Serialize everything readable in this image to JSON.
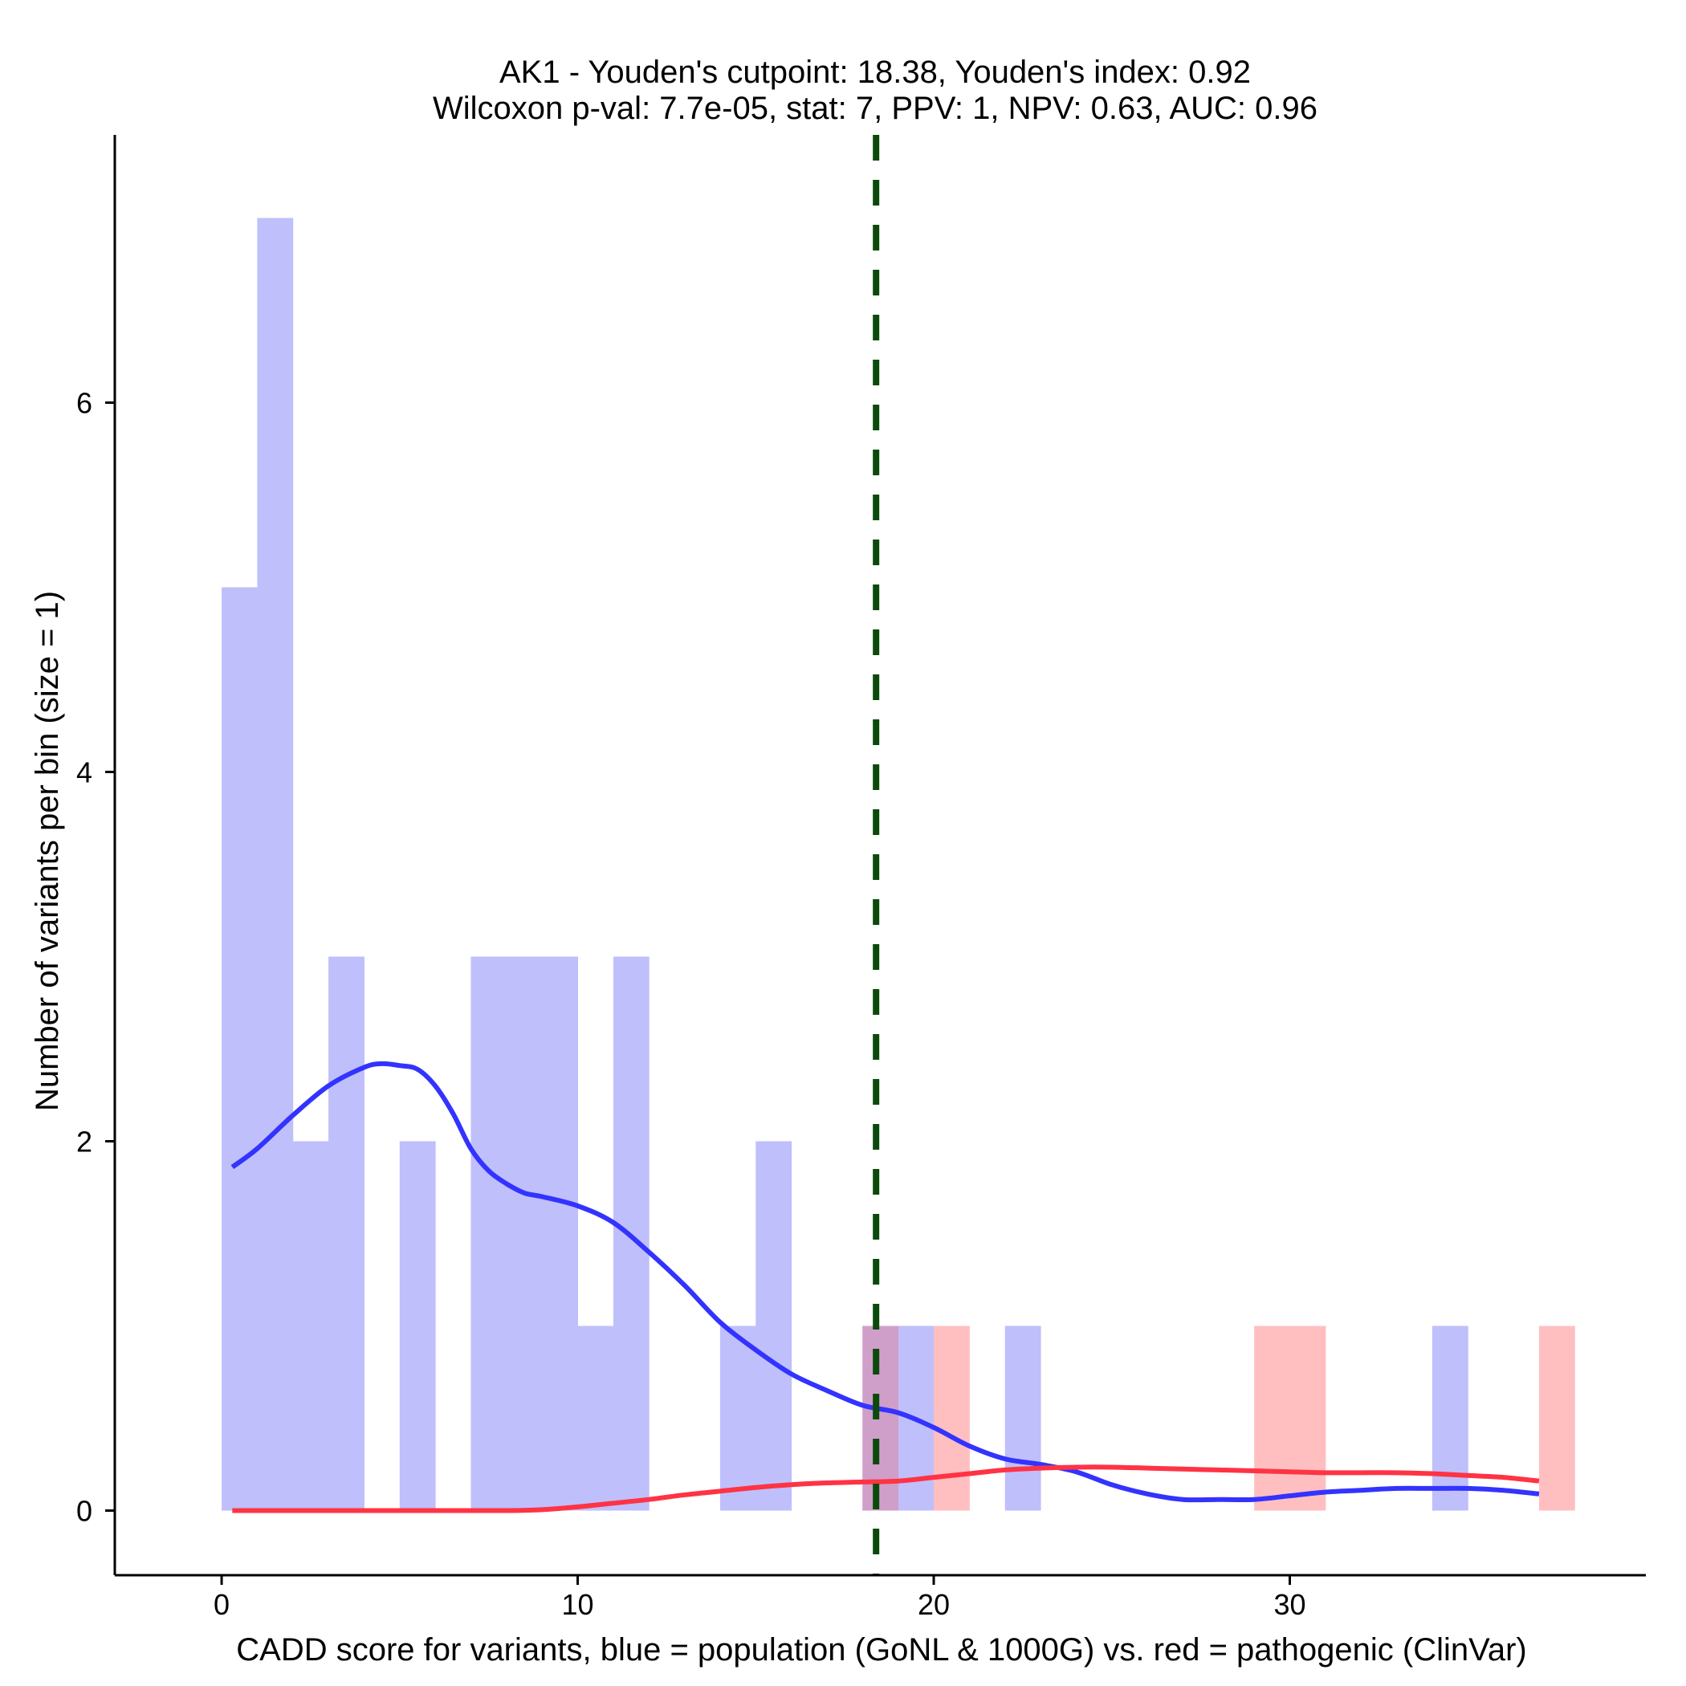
{
  "chart_data": {
    "type": "histogram",
    "title_line1": "AK1 - Youden's cutpoint: 18.38, Youden's index: 0.92",
    "title_line2": "Wilcoxon p-val: 7.7e-05, stat: 7, PPV: 1, NPV: 0.63, AUC: 0.96",
    "xlabel": "CADD score for variants, blue = population (GoNL & 1000G) vs. red = pathogenic (ClinVar)",
    "ylabel": "Number of variants per bin (size = 1)",
    "xlim": [
      -3,
      40
    ],
    "ylim": [
      -0.35,
      7.45
    ],
    "xticks": [
      0,
      10,
      20,
      30
    ],
    "yticks": [
      0,
      2,
      4,
      6
    ],
    "cutpoint": 18.38,
    "colors": {
      "population": "#3333ff",
      "pathogenic": "#ff3344",
      "population_fill": "#bfbffb",
      "pathogenic_fill": "#ffbfc1",
      "overlap_fill": "#cf9fca",
      "cutpoint": "#0b4a0b"
    },
    "series": [
      {
        "name": "population (GoNL & 1000G)",
        "bin_width": 1,
        "bins": [
          {
            "x": 0,
            "count": 5
          },
          {
            "x": 1,
            "count": 7
          },
          {
            "x": 2,
            "count": 2
          },
          {
            "x": 3,
            "count": 3
          },
          {
            "x": 5,
            "count": 2
          },
          {
            "x": 7,
            "count": 3
          },
          {
            "x": 8,
            "count": 3
          },
          {
            "x": 9,
            "count": 3
          },
          {
            "x": 10,
            "count": 1
          },
          {
            "x": 11,
            "count": 3
          },
          {
            "x": 14,
            "count": 1
          },
          {
            "x": 15,
            "count": 2
          },
          {
            "x": 18,
            "count": 1
          },
          {
            "x": 19,
            "count": 1
          },
          {
            "x": 22,
            "count": 1
          },
          {
            "x": 34,
            "count": 1
          }
        ],
        "density": [
          [
            0.3,
            1.86
          ],
          [
            1,
            1.96
          ],
          [
            2,
            2.14
          ],
          [
            3,
            2.3
          ],
          [
            4,
            2.4
          ],
          [
            4.5,
            2.42
          ],
          [
            5,
            2.41
          ],
          [
            5.5,
            2.39
          ],
          [
            6,
            2.3
          ],
          [
            6.5,
            2.15
          ],
          [
            7,
            1.96
          ],
          [
            7.5,
            1.84
          ],
          [
            8,
            1.77
          ],
          [
            8.5,
            1.72
          ],
          [
            9,
            1.7
          ],
          [
            10,
            1.65
          ],
          [
            11,
            1.56
          ],
          [
            12,
            1.4
          ],
          [
            13,
            1.22
          ],
          [
            14,
            1.02
          ],
          [
            15,
            0.87
          ],
          [
            16,
            0.74
          ],
          [
            17,
            0.65
          ],
          [
            18,
            0.57
          ],
          [
            19,
            0.53
          ],
          [
            20,
            0.45
          ],
          [
            21,
            0.35
          ],
          [
            22,
            0.28
          ],
          [
            23,
            0.25
          ],
          [
            24,
            0.21
          ],
          [
            25,
            0.14
          ],
          [
            26,
            0.09
          ],
          [
            27,
            0.06
          ],
          [
            28,
            0.06
          ],
          [
            29,
            0.06
          ],
          [
            30,
            0.08
          ],
          [
            31,
            0.1
          ],
          [
            32,
            0.11
          ],
          [
            33,
            0.12
          ],
          [
            34,
            0.12
          ],
          [
            35,
            0.12
          ],
          [
            36,
            0.11
          ],
          [
            37,
            0.09
          ]
        ]
      },
      {
        "name": "pathogenic (ClinVar)",
        "bin_width": 1,
        "bins": [
          {
            "x": 18,
            "count": 1
          },
          {
            "x": 20,
            "count": 1
          },
          {
            "x": 29,
            "count": 1
          },
          {
            "x": 30,
            "count": 1
          },
          {
            "x": 37,
            "count": 1
          }
        ],
        "density": [
          [
            0.3,
            0.0
          ],
          [
            5,
            0.0
          ],
          [
            8,
            0.0
          ],
          [
            9,
            0.005
          ],
          [
            10,
            0.02
          ],
          [
            11,
            0.04
          ],
          [
            12,
            0.06
          ],
          [
            13,
            0.085
          ],
          [
            14,
            0.105
          ],
          [
            15,
            0.125
          ],
          [
            16,
            0.14
          ],
          [
            17,
            0.15
          ],
          [
            18,
            0.155
          ],
          [
            19,
            0.16
          ],
          [
            20,
            0.18
          ],
          [
            21,
            0.2
          ],
          [
            22,
            0.22
          ],
          [
            23,
            0.23
          ],
          [
            24,
            0.235
          ],
          [
            25,
            0.235
          ],
          [
            26,
            0.23
          ],
          [
            27,
            0.225
          ],
          [
            28,
            0.22
          ],
          [
            29,
            0.215
          ],
          [
            30,
            0.21
          ],
          [
            31,
            0.205
          ],
          [
            32,
            0.205
          ],
          [
            33,
            0.205
          ],
          [
            34,
            0.2
          ],
          [
            35,
            0.19
          ],
          [
            36,
            0.18
          ],
          [
            37,
            0.16
          ]
        ]
      }
    ]
  }
}
